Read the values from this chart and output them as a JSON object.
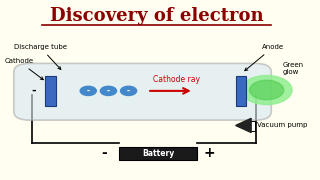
{
  "title": "Discovery of electron",
  "title_color": "#8B0000",
  "title_fontsize": 13,
  "bg_color": "#FFFEF0",
  "cathode_label": "Cathode",
  "discharge_label": "Discharge tube",
  "anode_label": "Anode",
  "green_glow_label": "Green\nglow",
  "cathode_ray_label": "Cathode ray",
  "vacuum_pump_label": "Vacuum pump",
  "battery_label": "Battery",
  "minus_sign": "-",
  "plus_sign": "+"
}
